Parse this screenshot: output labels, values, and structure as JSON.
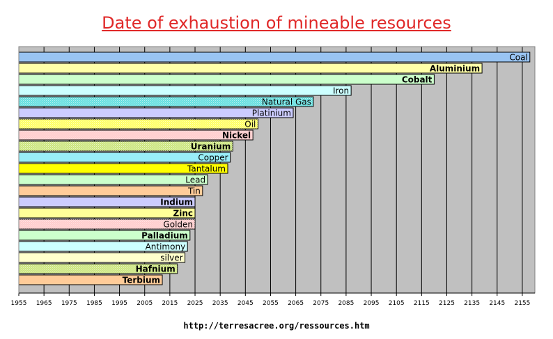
{
  "chart_data": {
    "type": "bar",
    "orientation": "horizontal",
    "title": "Date of exhaustion of mineable resources",
    "source": "http://terresacree.org/ressources.htm",
    "xlim": [
      1955,
      2160
    ],
    "x_ticks": [
      "1955",
      "1965",
      "1975",
      "1985",
      "1995",
      "2005",
      "2015",
      "2025",
      "2035",
      "2045",
      "2055",
      "2065",
      "2075",
      "2085",
      "2095",
      "2105",
      "2115",
      "2125",
      "2135",
      "2145",
      "2155"
    ],
    "grid": true,
    "plot_background": "#c0c0c0",
    "bars": [
      {
        "label": "Coal",
        "value": 2158,
        "color": "#99c4f2",
        "pattern": "none",
        "bold": false
      },
      {
        "label": "Aluminium",
        "value": 2139,
        "color": "#ffffa8",
        "pattern": "none",
        "bold": true
      },
      {
        "label": "Cobalt",
        "value": 2120,
        "color": "#ccffcc",
        "pattern": "none",
        "bold": true
      },
      {
        "label": "Iron",
        "value": 2087,
        "color": "#ccffff",
        "pattern": "none",
        "bold": false
      },
      {
        "label": "Natural Gas",
        "value": 2072,
        "color": "#66e0e0",
        "pattern": "dots",
        "bold": false
      },
      {
        "label": "Platinium",
        "value": 2064,
        "color": "#ccccff",
        "pattern": "none",
        "bold": false
      },
      {
        "label": "Oil",
        "value": 2050,
        "color": "#ffff66",
        "pattern": "dots",
        "bold": false
      },
      {
        "label": "Nickel",
        "value": 2048,
        "color": "#ffcccc",
        "pattern": "dots",
        "bold": true
      },
      {
        "label": "Uranium",
        "value": 2040,
        "color": "#cce680",
        "pattern": "dots",
        "bold": true
      },
      {
        "label": "Copper",
        "value": 2039,
        "color": "#99eef8",
        "pattern": "none",
        "bold": false
      },
      {
        "label": "Tantalum",
        "value": 2038,
        "color": "#ffff00",
        "pattern": "none",
        "bold": false
      },
      {
        "label": "Lead",
        "value": 2030,
        "color": "#ccffcc",
        "pattern": "none",
        "bold": false
      },
      {
        "label": "Tin",
        "value": 2028,
        "color": "#ffcc99",
        "pattern": "none",
        "bold": false
      },
      {
        "label": "Indium",
        "value": 2025,
        "color": "#ccccff",
        "pattern": "none",
        "bold": true
      },
      {
        "label": "Zinc",
        "value": 2025,
        "color": "#ffff99",
        "pattern": "none",
        "bold": true
      },
      {
        "label": "Golden",
        "value": 2025,
        "color": "#ffcccc",
        "pattern": "dots",
        "bold": false
      },
      {
        "label": "Palladium",
        "value": 2023,
        "color": "#ccffcc",
        "pattern": "none",
        "bold": true
      },
      {
        "label": "Antimony",
        "value": 2022,
        "color": "#ccffff",
        "pattern": "none",
        "bold": false
      },
      {
        "label": "silver",
        "value": 2021,
        "color": "#ffffcc",
        "pattern": "none",
        "bold": false
      },
      {
        "label": "Hafnium",
        "value": 2018,
        "color": "#cce680",
        "pattern": "dots",
        "bold": true
      },
      {
        "label": "Terbium",
        "value": 2012,
        "color": "#ffcc99",
        "pattern": "none",
        "bold": true
      }
    ]
  }
}
